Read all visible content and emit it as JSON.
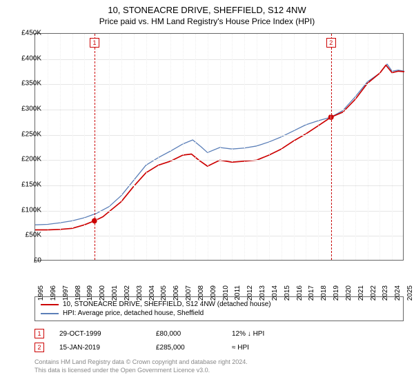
{
  "title": "10, STONEACRE DRIVE, SHEFFIELD, S12 4NW",
  "subtitle": "Price paid vs. HM Land Registry's House Price Index (HPI)",
  "title_fontsize": 13,
  "subtitle_fontsize": 12,
  "background_color": "#ffffff",
  "axis_color": "#666666",
  "grid_color": "#e6e6e6",
  "grid_color_v": "#eeeeee",
  "text_color": "#000000",
  "footer_color": "#888888",
  "chart": {
    "type": "line",
    "x_min": 1995,
    "x_max": 2025,
    "x_step": 1,
    "y_min": 0,
    "y_max": 450000,
    "y_step": 50000,
    "y_prefix": "£",
    "y_suffix": "K",
    "y_divisor": 1000,
    "x_label_rotation": -90,
    "series": [
      {
        "id": "property",
        "label": "10, STONEACRE DRIVE, SHEFFIELD, S12 4NW (detached house)",
        "color": "#cc0000",
        "line_width": 1.7,
        "points": [
          [
            1995.0,
            62000
          ],
          [
            1996.0,
            62000
          ],
          [
            1997.0,
            63000
          ],
          [
            1998.0,
            65000
          ],
          [
            1999.0,
            72000
          ],
          [
            1999.82,
            80000
          ],
          [
            2000.5,
            88000
          ],
          [
            2001.0,
            98000
          ],
          [
            2002.0,
            118000
          ],
          [
            2003.0,
            148000
          ],
          [
            2004.0,
            175000
          ],
          [
            2005.0,
            190000
          ],
          [
            2006.0,
            198000
          ],
          [
            2007.0,
            210000
          ],
          [
            2007.7,
            212000
          ],
          [
            2008.3,
            200000
          ],
          [
            2009.0,
            188000
          ],
          [
            2010.0,
            200000
          ],
          [
            2011.0,
            196000
          ],
          [
            2012.0,
            198000
          ],
          [
            2013.0,
            200000
          ],
          [
            2014.0,
            210000
          ],
          [
            2015.0,
            222000
          ],
          [
            2016.0,
            238000
          ],
          [
            2017.0,
            252000
          ],
          [
            2018.0,
            268000
          ],
          [
            2019.04,
            285000
          ],
          [
            2020.0,
            295000
          ],
          [
            2021.0,
            320000
          ],
          [
            2022.0,
            352000
          ],
          [
            2023.0,
            372000
          ],
          [
            2023.5,
            388000
          ],
          [
            2024.0,
            373000
          ],
          [
            2024.5,
            376000
          ],
          [
            2025.0,
            375000
          ]
        ]
      },
      {
        "id": "hpi",
        "label": "HPI: Average price, detached house, Sheffield",
        "color": "#5b7fb8",
        "line_width": 1.3,
        "points": [
          [
            1995.0,
            72000
          ],
          [
            1996.0,
            73000
          ],
          [
            1997.0,
            76000
          ],
          [
            1998.0,
            80000
          ],
          [
            1999.0,
            86000
          ],
          [
            2000.0,
            95000
          ],
          [
            2001.0,
            108000
          ],
          [
            2002.0,
            130000
          ],
          [
            2003.0,
            160000
          ],
          [
            2004.0,
            190000
          ],
          [
            2005.0,
            205000
          ],
          [
            2006.0,
            218000
          ],
          [
            2007.0,
            232000
          ],
          [
            2007.8,
            240000
          ],
          [
            2008.5,
            226000
          ],
          [
            2009.0,
            215000
          ],
          [
            2010.0,
            225000
          ],
          [
            2011.0,
            222000
          ],
          [
            2012.0,
            224000
          ],
          [
            2013.0,
            228000
          ],
          [
            2014.0,
            236000
          ],
          [
            2015.0,
            246000
          ],
          [
            2016.0,
            258000
          ],
          [
            2017.0,
            270000
          ],
          [
            2018.0,
            278000
          ],
          [
            2019.04,
            285000
          ],
          [
            2020.0,
            298000
          ],
          [
            2021.0,
            325000
          ],
          [
            2022.0,
            355000
          ],
          [
            2023.0,
            372000
          ],
          [
            2023.6,
            390000
          ],
          [
            2024.0,
            376000
          ],
          [
            2024.5,
            378000
          ],
          [
            2025.0,
            376000
          ]
        ]
      }
    ],
    "markers": [
      {
        "x": 1999.82,
        "y": 80000,
        "r": 4,
        "color": "#cc0000",
        "label": "1"
      },
      {
        "x": 2019.04,
        "y": 285000,
        "r": 4,
        "color": "#cc0000",
        "label": "2"
      }
    ],
    "event_lines": [
      {
        "x": 1999.82,
        "color": "#cc0000",
        "dash": "4,3"
      },
      {
        "x": 2019.04,
        "color": "#cc0000",
        "dash": "4,3"
      }
    ]
  },
  "legend": {
    "border_color": "#666666",
    "fontsize": 10,
    "items": [
      {
        "color": "#cc0000",
        "label_path": "chart.series.0.label"
      },
      {
        "color": "#5b7fb8",
        "label_path": "chart.series.1.label"
      }
    ]
  },
  "events": [
    {
      "num": "1",
      "date": "29-OCT-1999",
      "price": "£80,000",
      "delta": "12% ↓ HPI"
    },
    {
      "num": "2",
      "date": "15-JAN-2019",
      "price": "£285,000",
      "delta": "≈ HPI"
    }
  ],
  "footer_line1": "Contains HM Land Registry data © Crown copyright and database right 2024.",
  "footer_line2": "This data is licensed under the Open Government Licence v3.0."
}
